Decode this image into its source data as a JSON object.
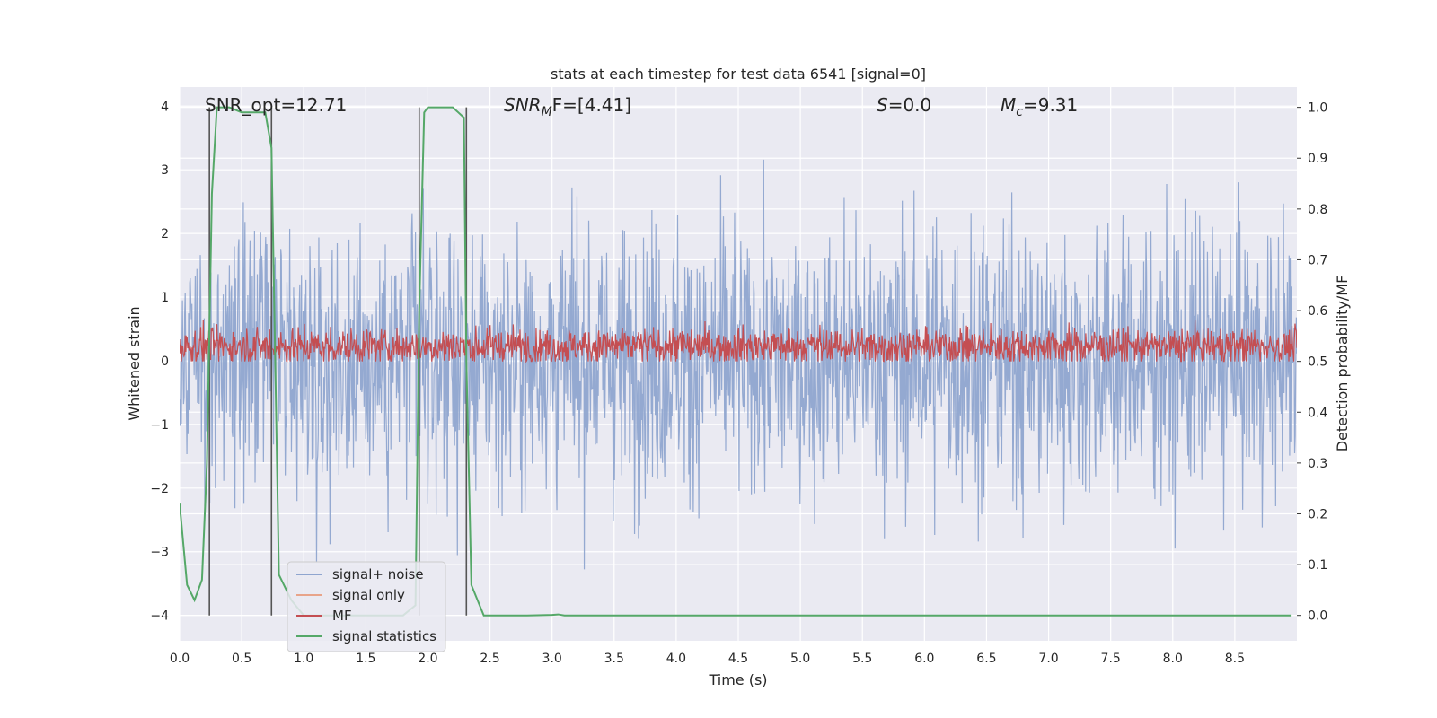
{
  "chart_data": {
    "type": "line",
    "title": "stats at each timestep for test data 6541 [signal=0]",
    "xlabel": "Time (s)",
    "ylabel": "Whitened strain",
    "ylabel_right": "Detection probability/MF",
    "xlim": [
      0,
      9.0
    ],
    "ylim": [
      -4.4,
      4.3
    ],
    "ylim_right": [
      -0.05,
      1.04
    ],
    "x_ticks": [
      "0.0",
      "0.5",
      "1.0",
      "1.5",
      "2.0",
      "2.5",
      "3.0",
      "3.5",
      "4.0",
      "4.5",
      "5.0",
      "5.5",
      "6.0",
      "6.5",
      "7.0",
      "7.5",
      "8.0",
      "8.5"
    ],
    "y_ticks": [
      "−4",
      "−3",
      "−2",
      "−1",
      "0",
      "1",
      "2",
      "3",
      "4"
    ],
    "y_ticks_right": [
      "0.0",
      "0.1",
      "0.2",
      "0.3",
      "0.4",
      "0.5",
      "0.6",
      "0.7",
      "0.8",
      "0.9",
      "1.0"
    ],
    "grid": true,
    "legend_position": "lower-left",
    "annotations": {
      "snr_opt": "SNR_opt=12.71",
      "snr_mf_main": "SNR",
      "snr_mf_sub": "M",
      "snr_mf_rest": "F=[4.41]",
      "s_main": "S",
      "s_rest": "=0.0",
      "mc_main": "M",
      "mc_sub": "c",
      "mc_rest": "=9.31"
    },
    "vertical_markers_x": [
      0.24,
      0.74,
      1.93,
      2.31
    ],
    "series": [
      {
        "name": "signal+ noise",
        "color": "#8fa5cf",
        "axis": "left",
        "envelope_upper": 2.2,
        "envelope_lower": -2.2,
        "peak_max": 3.9,
        "peak_min": -4.0,
        "n_samples": 2000
      },
      {
        "name": "signal only",
        "color": "#e8a48a",
        "axis": "left",
        "values": "not visible"
      },
      {
        "name": "MF",
        "color": "#c44e52",
        "axis": "right",
        "mean": 0.53,
        "min": 0.5,
        "max": 0.6
      },
      {
        "name": "signal statistics",
        "color": "#55a868",
        "axis": "right",
        "x": [
          0.0,
          0.06,
          0.12,
          0.18,
          0.22,
          0.26,
          0.3,
          0.4,
          0.5,
          0.6,
          0.69,
          0.74,
          0.8,
          0.9,
          1.0,
          1.2,
          1.4,
          1.6,
          1.8,
          1.9,
          1.93,
          1.97,
          2.0,
          2.1,
          2.2,
          2.29,
          2.31,
          2.35,
          2.45,
          2.6,
          2.8,
          3.0,
          3.05,
          3.1,
          3.2,
          3.5,
          4.0,
          5.0,
          6.0,
          7.0,
          8.0,
          8.95
        ],
        "y": [
          0.22,
          0.06,
          0.03,
          0.07,
          0.3,
          0.83,
          1.0,
          1.0,
          0.99,
          0.99,
          0.99,
          0.92,
          0.08,
          0.03,
          0.0,
          0.0,
          0.0,
          0.0,
          0.0,
          0.02,
          0.6,
          0.99,
          1.0,
          1.0,
          1.0,
          0.98,
          0.5,
          0.06,
          0.0,
          0.0,
          0.0,
          0.001,
          0.002,
          0.0,
          0.0,
          0.0,
          0.0,
          0.0,
          0.0,
          0.0,
          0.0,
          0.0
        ]
      }
    ],
    "colors": {
      "plot_background": "#eaeaf2",
      "grid": "#ffffff",
      "marker_line": "#555555"
    }
  }
}
